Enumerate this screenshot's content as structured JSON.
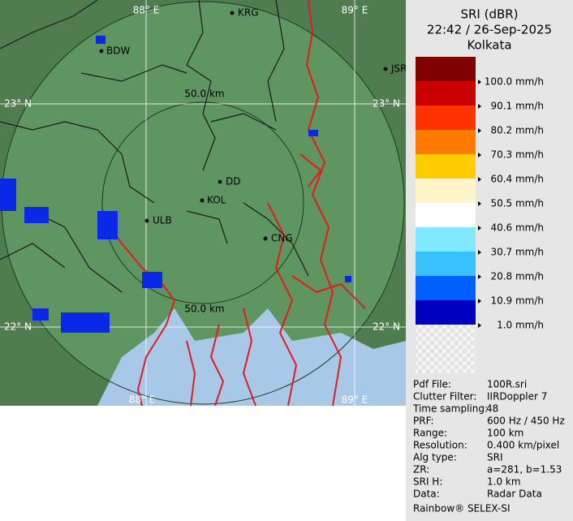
{
  "map": {
    "cities": [
      "KRG",
      "BDW",
      "JSR",
      "DD",
      "KOL",
      "ULB",
      "CNG"
    ],
    "range_labels": [
      "50.0 km",
      "50.0 km"
    ],
    "grid_labels": [
      "88° E",
      "89° E",
      "23° N",
      "23° N",
      "22° N",
      "22° N",
      "88° E",
      "89° E"
    ]
  },
  "legend": {
    "title": "SRI (dBR)",
    "datetime": "22:42 / 26-Sep-2025",
    "site": "Kolkata",
    "colors": [
      "#7f0000",
      "#c80000",
      "#ff3300",
      "#ff7a00",
      "#ffcc00",
      "#fff5c8",
      "#ffffff",
      "#80e8ff",
      "#38c0ff",
      "#0060ff",
      "#0000c0"
    ],
    "labels": [
      "100.0 mm/h",
      "90.1 mm/h",
      "80.2 mm/h",
      "70.3 mm/h",
      "60.4 mm/h",
      "50.5 mm/h",
      "40.6 mm/h",
      "30.7 mm/h",
      "20.8 mm/h",
      "10.9 mm/h",
      "1.0 mm/h"
    ]
  },
  "info": {
    "rows": [
      [
        "Pdf File:",
        "100R.sri"
      ],
      [
        "Clutter Filter:",
        "IIRDoppler 7"
      ],
      [
        "Time sampling:",
        "48"
      ],
      [
        "PRF:",
        "600 Hz / 450 Hz"
      ],
      [
        "Range:",
        "100 km"
      ],
      [
        "Resolution:",
        "0.400 km/pixel"
      ],
      [
        "Alg type:",
        "SRI"
      ],
      [
        "ZR:",
        "a=281, b=1.53"
      ],
      [
        "SRI H:",
        "1.0 km"
      ],
      [
        "Data:",
        "Radar Data"
      ]
    ],
    "footer": "Rainbow® SELEX-SI"
  }
}
